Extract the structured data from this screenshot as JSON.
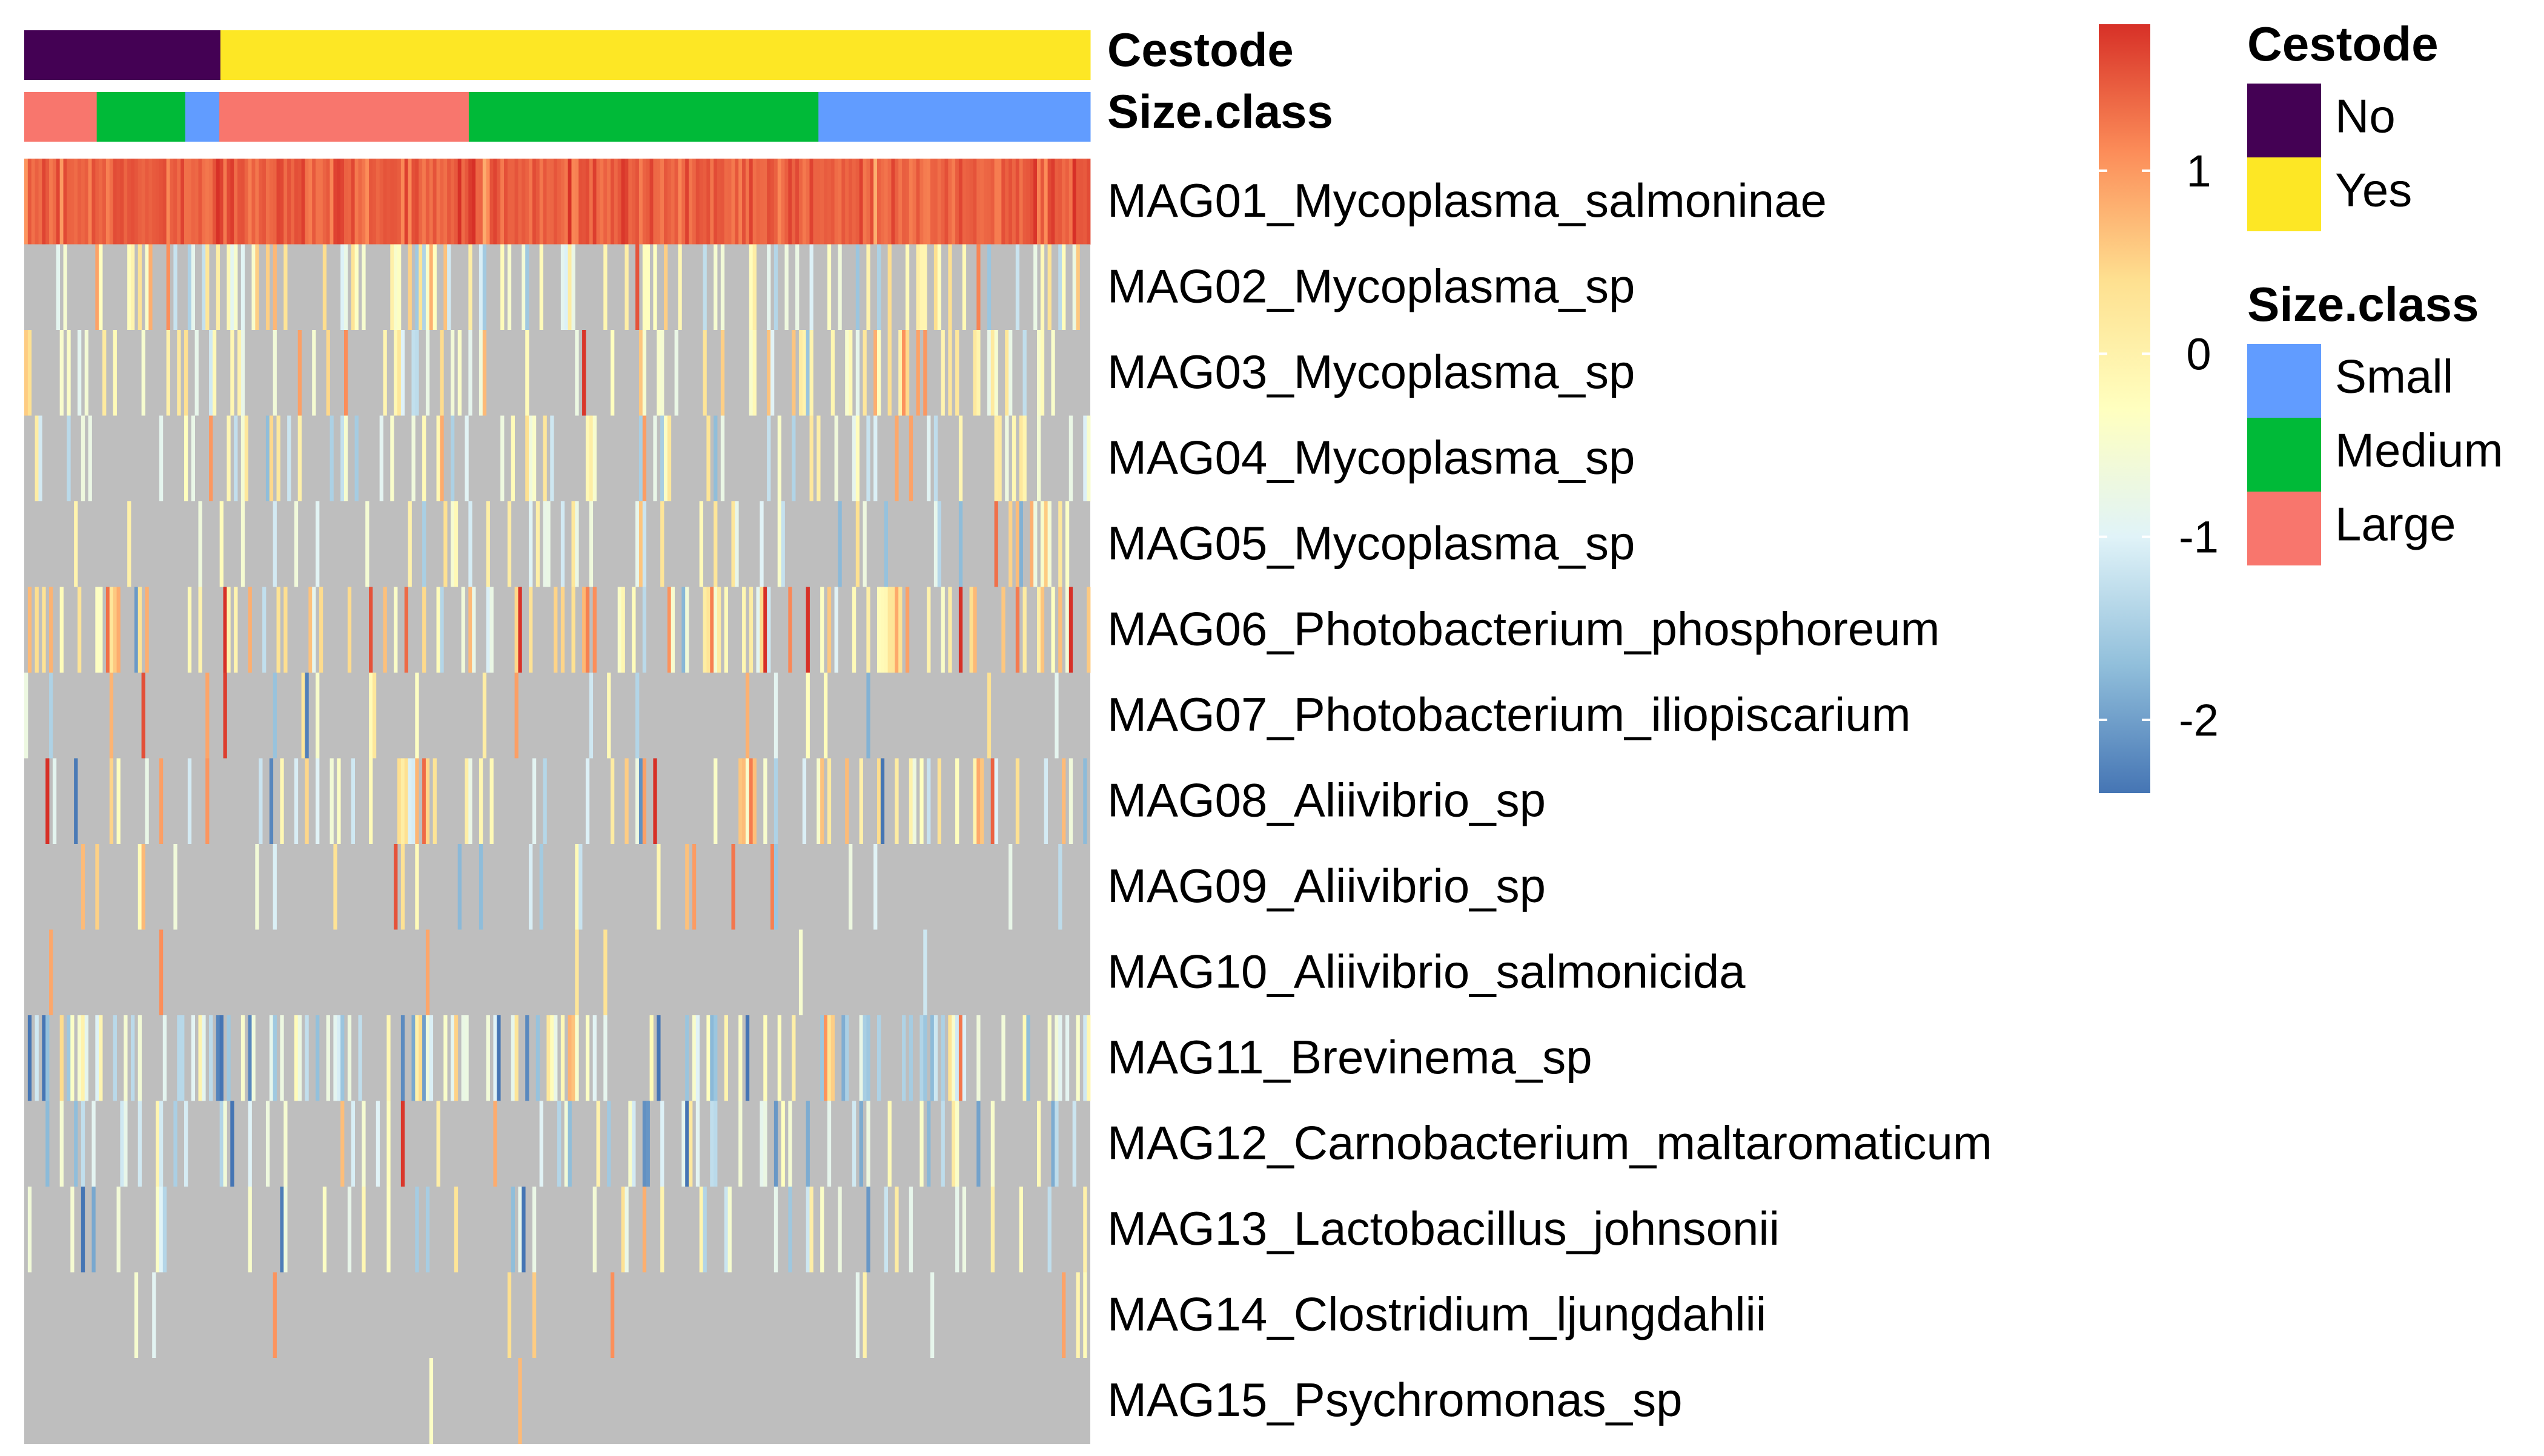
{
  "chart_data": {
    "type": "heatmap",
    "annotations": [
      {
        "name": "Cestode",
        "segments": [
          {
            "label": "No",
            "fraction": 0.184
          },
          {
            "label": "Yes",
            "fraction": 0.816
          }
        ]
      },
      {
        "name": "Size.class",
        "segments": [
          {
            "label": "Large",
            "fraction": 0.068
          },
          {
            "label": "Medium",
            "fraction": 0.083
          },
          {
            "label": "Small",
            "fraction": 0.032
          },
          {
            "label": "Large",
            "fraction": 0.234
          },
          {
            "label": "Medium",
            "fraction": 0.328
          },
          {
            "label": "Small",
            "fraction": 0.255
          }
        ]
      }
    ],
    "rows": [
      "MAG01_Mycoplasma_salmoninae",
      "MAG02_Mycoplasma_sp",
      "MAG03_Mycoplasma_sp",
      "MAG04_Mycoplasma_sp",
      "MAG05_Mycoplasma_sp",
      "MAG06_Photobacterium_phosphoreum",
      "MAG07_Photobacterium_iliopiscarium",
      "MAG08_Aliivibrio_sp",
      "MAG09_Aliivibrio_sp",
      "MAG10_Aliivibrio_salmonicida",
      "MAG11_Brevinema_sp",
      "MAG12_Carnobacterium_maltaromaticum",
      "MAG13_Lactobacillus_johnsonii",
      "MAG14_Clostridium_ljungdahlii",
      "MAG15_Psychromonas_sp"
    ],
    "n_columns": 300,
    "row_profiles": [
      {
        "density": 1.0,
        "mean": 1.45,
        "spread": 0.15
      },
      {
        "density": 0.3,
        "mean": -0.3,
        "spread": 0.7
      },
      {
        "density": 0.25,
        "mean": -0.2,
        "spread": 0.7
      },
      {
        "density": 0.25,
        "mean": -0.5,
        "spread": 0.7
      },
      {
        "density": 0.15,
        "mean": -0.4,
        "spread": 0.7
      },
      {
        "density": 0.32,
        "mean": 0.1,
        "spread": 0.9
      },
      {
        "density": 0.1,
        "mean": 0.0,
        "spread": 0.9
      },
      {
        "density": 0.25,
        "mean": -0.3,
        "spread": 1.0
      },
      {
        "density": 0.12,
        "mean": -0.1,
        "spread": 1.0
      },
      {
        "density": 0.05,
        "mean": 0.0,
        "spread": 0.9
      },
      {
        "density": 0.35,
        "mean": -0.8,
        "spread": 0.8
      },
      {
        "density": 0.22,
        "mean": -1.0,
        "spread": 0.7
      },
      {
        "density": 0.15,
        "mean": -1.0,
        "spread": 0.8
      },
      {
        "density": 0.03,
        "mean": 0.0,
        "spread": 0.6
      },
      {
        "density": 0.01,
        "mean": 0.0,
        "spread": 0.6
      }
    ],
    "missing_color": "#BEBEBE",
    "value_range": [
      -2.4,
      1.8
    ],
    "colorbar": {
      "ticks": [
        1,
        0,
        -1,
        -2
      ],
      "tick_labels": [
        "1",
        "0",
        "-1",
        "-2"
      ],
      "colors": [
        "#4575B4",
        "#91BFDB",
        "#E0F3F8",
        "#FFFFBF",
        "#FEE090",
        "#FC8D59",
        "#D73027"
      ]
    },
    "legends": [
      {
        "title": "Cestode",
        "items": [
          {
            "label": "No",
            "color": "#440154"
          },
          {
            "label": "Yes",
            "color": "#FDE725"
          }
        ]
      },
      {
        "title": "Size.class",
        "items": [
          {
            "label": "Small",
            "color": "#619CFF"
          },
          {
            "label": "Medium",
            "color": "#00BA38"
          },
          {
            "label": "Large",
            "color": "#F8766D"
          }
        ]
      }
    ],
    "category_colors": {
      "No": "#440154",
      "Yes": "#FDE725",
      "Small": "#619CFF",
      "Medium": "#00BA38",
      "Large": "#F8766D"
    }
  }
}
